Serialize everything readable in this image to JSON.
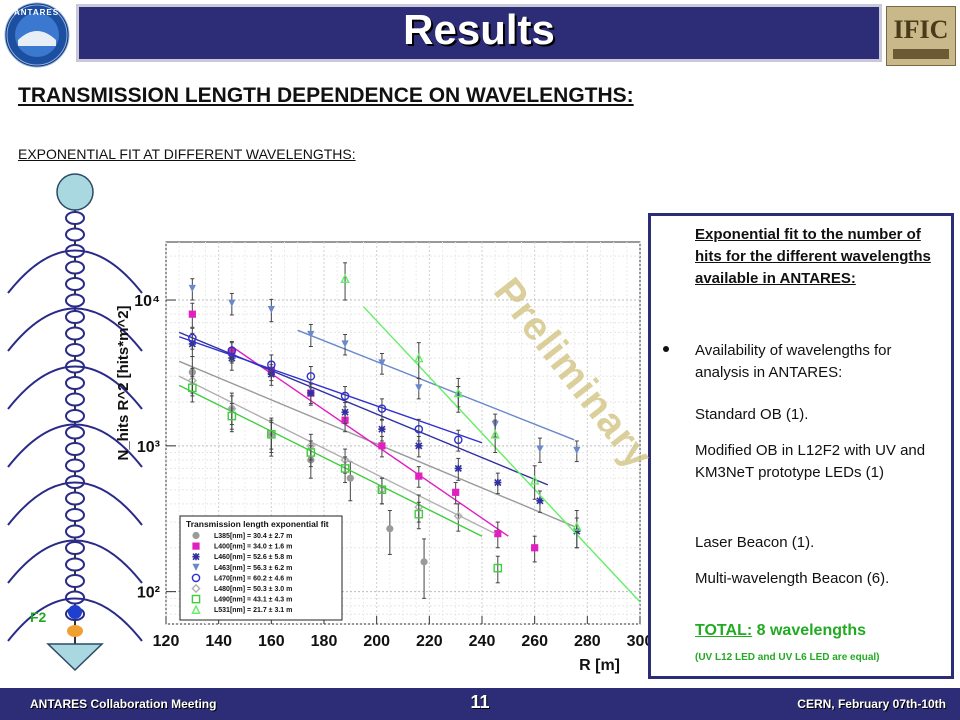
{
  "header": {
    "title": "Results",
    "logo_left_text": "ANTARES",
    "logo_right_text": "IFIC"
  },
  "heading": "TRANSMISSION LENGTH DEPENDENCE ON WAVELENGTHS:",
  "subheading": "EXPONENTIAL FIT AT DIFFERENT WAVELENGTHS:",
  "detector": {
    "floor_label": "F2",
    "colors": {
      "storey": "#2a2a88",
      "float": "#aad8e0",
      "blue_module": "#1f3fd0",
      "orange_module": "#f0a030"
    }
  },
  "watermark": "Preliminary",
  "info": {
    "title": "Exponential fit to the number of hits for the different wavelengths available in ANTARES:",
    "bullet": "Availability of wavelengths for analysis in ANTARES:",
    "items": [
      "Standard OB (1).",
      "Modified OB in L12F2 with UV and KM3NeT prototype LEDs (1)",
      "Laser Beacon (1).",
      "Multi-wavelength Beacon (6)."
    ],
    "total_label": "TOTAL:",
    "total_value": "8 wavelengths",
    "note": "(UV L12 LED and UV L6 LED are equal)"
  },
  "footer": {
    "left": "ANTARES Collaboration Meeting",
    "center": "11",
    "right": "CERN, February 07th-10th"
  },
  "chart_data": {
    "type": "scatter",
    "title": "",
    "xlabel": "R [m]",
    "ylabel": "N_hits R^2 [hits*m^2]",
    "xlim": [
      120,
      300
    ],
    "ylim": [
      60,
      25000
    ],
    "yscale": "log",
    "xticks": [
      120,
      140,
      160,
      180,
      200,
      220,
      240,
      260,
      280,
      300
    ],
    "yticks": [
      {
        "v": 100,
        "label": "10²"
      },
      {
        "v": 1000,
        "label": "10³"
      },
      {
        "v": 10000,
        "label": "10⁴"
      }
    ],
    "grid": true,
    "legend": {
      "title": "Transmission length exponential fit",
      "position": "bottom-left"
    },
    "series": [
      {
        "name": "L385[nm] = 30.4 ± 2.7 m",
        "color": "#9a9a9a",
        "marker": "circle-filled",
        "fit_x": [
          125,
          275
        ],
        "fit_y": [
          3800,
          280
        ],
        "x": [
          130,
          145,
          160,
          175,
          190,
          205,
          218
        ],
        "y": [
          3200,
          1800,
          1200,
          800,
          600,
          270,
          160
        ],
        "err": [
          900,
          500,
          350,
          200,
          180,
          90,
          70
        ]
      },
      {
        "name": "L400[nm] = 34.0 ± 1.6 m",
        "color": "#e020c0",
        "marker": "square-filled",
        "fit_x": [
          145,
          250
        ],
        "fit_y": [
          4800,
          240
        ],
        "x": [
          130,
          145,
          160,
          175,
          188,
          202,
          216,
          230,
          246,
          260
        ],
        "y": [
          8000,
          4400,
          3300,
          2300,
          1500,
          1000,
          620,
          480,
          250,
          200
        ],
        "err": [
          1500,
          700,
          500,
          350,
          250,
          160,
          100,
          80,
          50,
          40
        ]
      },
      {
        "name": "L460[nm] = 52.6 ± 5.8 m",
        "color": "#3030a0",
        "marker": "star",
        "fit_x": [
          125,
          265
        ],
        "fit_y": [
          6000,
          540
        ],
        "x": [
          130,
          145,
          160,
          175,
          188,
          202,
          216,
          231,
          246,
          262,
          276
        ],
        "y": [
          5000,
          4000,
          3100,
          2300,
          1700,
          1300,
          1000,
          700,
          560,
          420,
          260
        ],
        "err": [
          900,
          700,
          500,
          400,
          280,
          220,
          160,
          120,
          90,
          70,
          60
        ]
      },
      {
        "name": "L463[nm] = 56.3 ± 6.2 m",
        "color": "#6a88cc",
        "marker": "triangle-down",
        "fit_x": [
          170,
          275
        ],
        "fit_y": [
          6200,
          1100
        ],
        "x": [
          130,
          145,
          160,
          175,
          188,
          202,
          216,
          231,
          245,
          262,
          276
        ],
        "y": [
          12000,
          9500,
          8600,
          5800,
          5000,
          3700,
          2500,
          2200,
          1400,
          950,
          930
        ],
        "err": [
          2000,
          1600,
          1500,
          1000,
          800,
          600,
          400,
          350,
          250,
          180,
          150
        ]
      },
      {
        "name": "L470[nm] = 60.2 ± 4.6 m",
        "color": "#3030d0",
        "marker": "circle-open",
        "fit_x": [
          125,
          240
        ],
        "fit_y": [
          5600,
          1050
        ],
        "x": [
          130,
          145,
          160,
          175,
          188,
          202,
          216,
          231
        ],
        "y": [
          5500,
          4500,
          3600,
          3000,
          2200,
          1800,
          1300,
          1100
        ],
        "err": [
          900,
          700,
          600,
          500,
          350,
          300,
          220,
          180
        ]
      },
      {
        "name": "L480[nm] = 50.3 ± 3.0 m",
        "color": "#b0b0b0",
        "marker": "diamond-open",
        "fit_x": [
          125,
          245
        ],
        "fit_y": [
          3000,
          250
        ],
        "x": [
          130,
          145,
          160,
          175,
          188,
          202,
          216,
          231
        ],
        "y": [
          2800,
          1800,
          1200,
          1000,
          800,
          500,
          380,
          330
        ],
        "err": [
          600,
          400,
          300,
          200,
          150,
          100,
          80,
          70
        ]
      },
      {
        "name": "L490[nm] = 43.1 ± 4.3 m",
        "color": "#40cc40",
        "marker": "square-open",
        "fit_x": [
          125,
          240
        ],
        "fit_y": [
          2600,
          240
        ],
        "x": [
          130,
          145,
          160,
          175,
          188,
          202,
          216,
          246
        ],
        "y": [
          2500,
          1600,
          1200,
          900,
          700,
          500,
          340,
          145
        ],
        "err": [
          500,
          350,
          250,
          180,
          140,
          100,
          70,
          30
        ]
      },
      {
        "name": "L531[nm] = 21.7 ± 3.1 m",
        "color": "#66ee66",
        "marker": "triangle-open",
        "fit_x": [
          195,
          300
        ],
        "fit_y": [
          9000,
          85
        ],
        "x": [
          188,
          216,
          231,
          245,
          260,
          276
        ],
        "y": [
          14000,
          4000,
          2300,
          1200,
          580,
          280
        ],
        "err": [
          4000,
          1100,
          600,
          300,
          150,
          80
        ]
      }
    ]
  }
}
